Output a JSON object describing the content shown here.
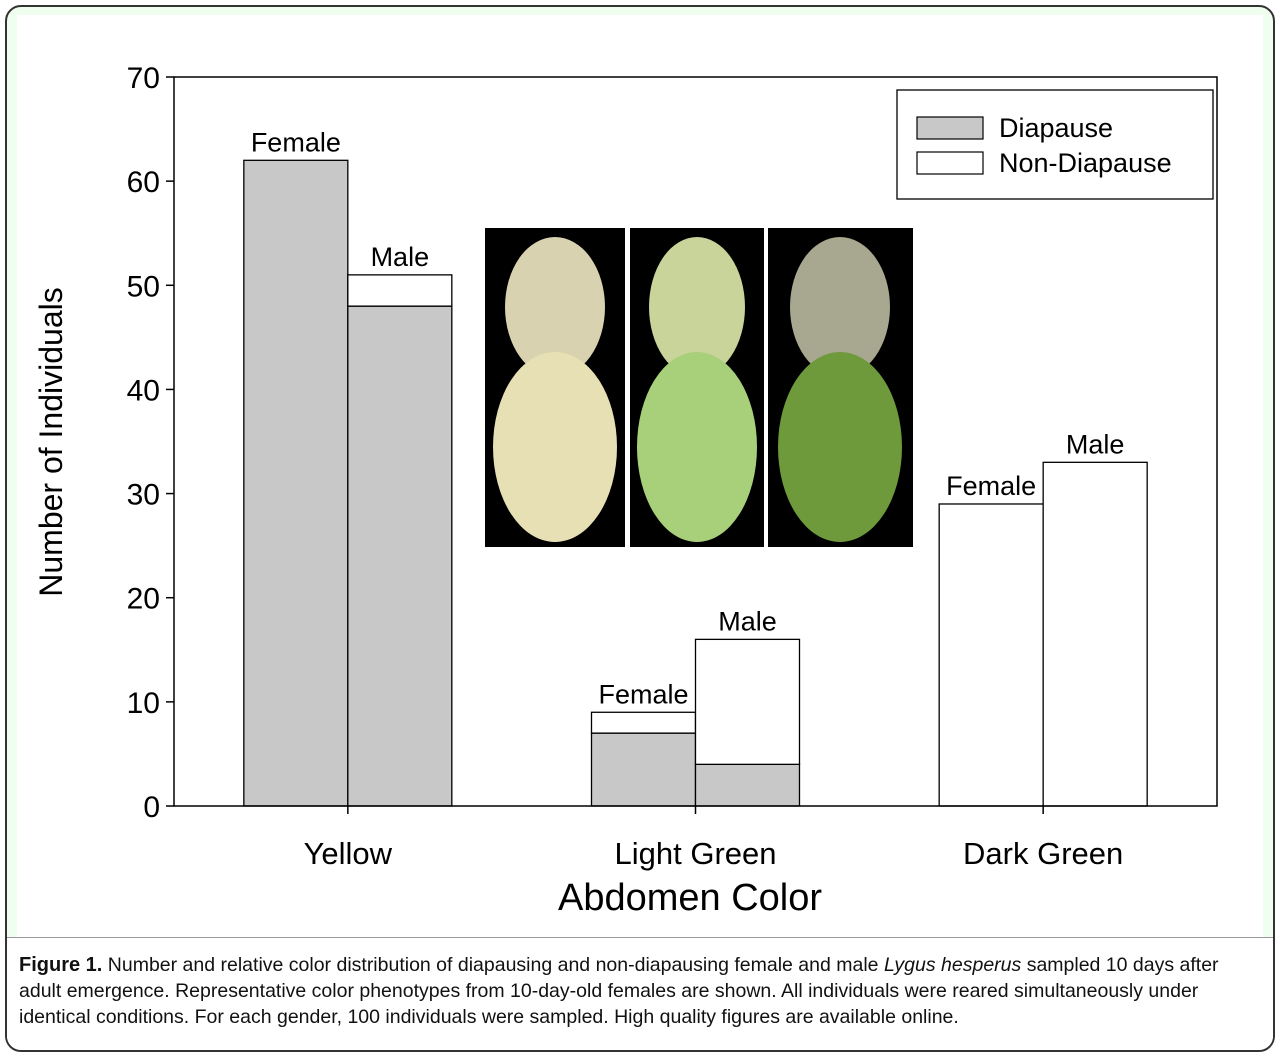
{
  "chart_data": {
    "type": "bar",
    "stacked": true,
    "categories": [
      "Yellow",
      "Light Green",
      "Dark Green"
    ],
    "groups": [
      "Female",
      "Male"
    ],
    "series": [
      {
        "name": "Diapause",
        "color": "#c8c8c8",
        "values": [
          [
            62,
            48
          ],
          [
            7,
            4
          ],
          [
            0,
            0
          ]
        ]
      },
      {
        "name": "Non-Diapause",
        "color": "#ffffff",
        "values": [
          [
            0,
            3
          ],
          [
            2,
            12
          ],
          [
            29,
            33
          ]
        ]
      }
    ],
    "ylim": [
      0,
      70
    ],
    "yticks": [
      0,
      10,
      20,
      30,
      40,
      50,
      60,
      70
    ],
    "xlabel": "Abdomen Color",
    "ylabel": "Number of Individuals",
    "legend": "upper right"
  },
  "caption": {
    "label": "Figure 1.",
    "text_before": "Number and relative color distribution of diapausing and non-diapausing female and male",
    "italic": "Lygus hesperus",
    "text_after": "sampled 10 days after adult emergence. Representative color phenotypes from 10-day-old females are shown. All individuals were reared simultaneously under identical conditions. For each gender, 100 individuals were sampled. High quality figures are available online."
  }
}
